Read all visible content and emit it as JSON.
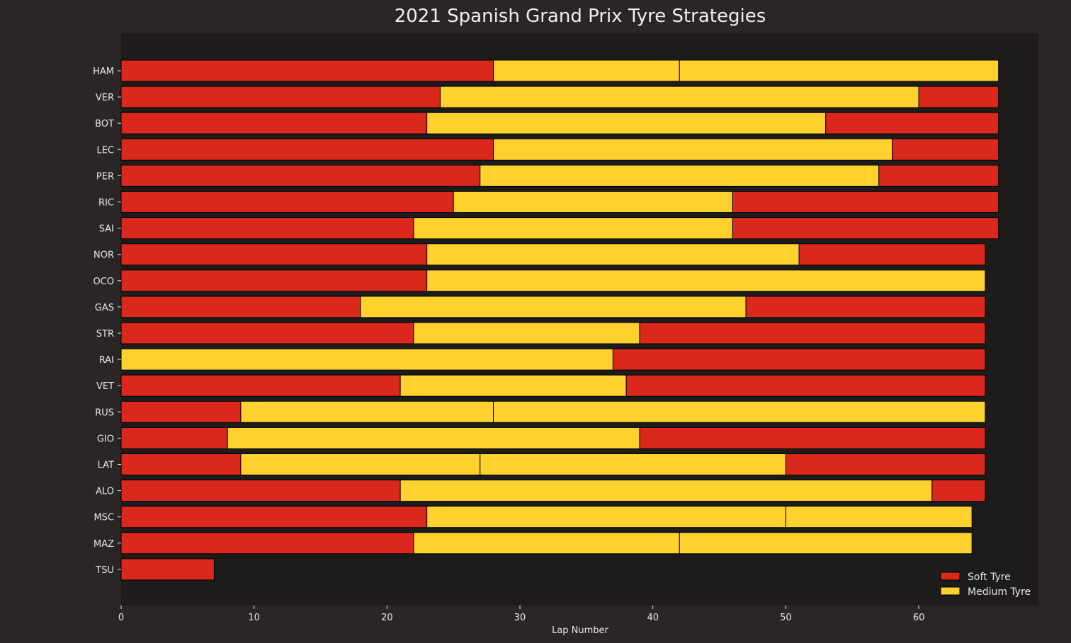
{
  "chart_data": {
    "type": "bar",
    "orientation": "horizontal",
    "stacked": true,
    "title": "2021 Spanish Grand Prix Tyre Strategies",
    "xlabel": "Lap Number",
    "ylabel": "",
    "xlim": [
      0,
      69
    ],
    "xticks": [
      0,
      10,
      20,
      30,
      40,
      50,
      60
    ],
    "grid": false,
    "legend": {
      "position": "bottom-right",
      "entries": [
        {
          "name": "Soft Tyre",
          "compound": "SOFT"
        },
        {
          "name": "Medium Tyre",
          "compound": "MEDIUM"
        }
      ]
    },
    "colors": {
      "SOFT": "#da291c",
      "MEDIUM": "#ffd12e",
      "background": "#292625",
      "plot_background": "#1e1c1b",
      "edge": "#000000"
    },
    "drivers": [
      {
        "driver": "HAM",
        "stints": [
          {
            "compound": "SOFT",
            "start": 0,
            "laps": 28
          },
          {
            "compound": "MEDIUM",
            "start": 28,
            "laps": 14
          },
          {
            "compound": "MEDIUM",
            "start": 42,
            "laps": 24
          }
        ]
      },
      {
        "driver": "VER",
        "stints": [
          {
            "compound": "SOFT",
            "start": 0,
            "laps": 24
          },
          {
            "compound": "MEDIUM",
            "start": 24,
            "laps": 36
          },
          {
            "compound": "SOFT",
            "start": 60,
            "laps": 6
          }
        ]
      },
      {
        "driver": "BOT",
        "stints": [
          {
            "compound": "SOFT",
            "start": 0,
            "laps": 23
          },
          {
            "compound": "MEDIUM",
            "start": 23,
            "laps": 30
          },
          {
            "compound": "SOFT",
            "start": 53,
            "laps": 13
          }
        ]
      },
      {
        "driver": "LEC",
        "stints": [
          {
            "compound": "SOFT",
            "start": 0,
            "laps": 28
          },
          {
            "compound": "MEDIUM",
            "start": 28,
            "laps": 30
          },
          {
            "compound": "SOFT",
            "start": 58,
            "laps": 8
          }
        ]
      },
      {
        "driver": "PER",
        "stints": [
          {
            "compound": "SOFT",
            "start": 0,
            "laps": 27
          },
          {
            "compound": "MEDIUM",
            "start": 27,
            "laps": 30
          },
          {
            "compound": "SOFT",
            "start": 57,
            "laps": 9
          }
        ]
      },
      {
        "driver": "RIC",
        "stints": [
          {
            "compound": "SOFT",
            "start": 0,
            "laps": 25
          },
          {
            "compound": "MEDIUM",
            "start": 25,
            "laps": 21
          },
          {
            "compound": "SOFT",
            "start": 46,
            "laps": 20
          }
        ]
      },
      {
        "driver": "SAI",
        "stints": [
          {
            "compound": "SOFT",
            "start": 0,
            "laps": 22
          },
          {
            "compound": "MEDIUM",
            "start": 22,
            "laps": 24
          },
          {
            "compound": "SOFT",
            "start": 46,
            "laps": 20
          }
        ]
      },
      {
        "driver": "NOR",
        "stints": [
          {
            "compound": "SOFT",
            "start": 0,
            "laps": 23
          },
          {
            "compound": "MEDIUM",
            "start": 23,
            "laps": 28
          },
          {
            "compound": "SOFT",
            "start": 51,
            "laps": 14
          }
        ]
      },
      {
        "driver": "OCO",
        "stints": [
          {
            "compound": "SOFT",
            "start": 0,
            "laps": 23
          },
          {
            "compound": "MEDIUM",
            "start": 23,
            "laps": 42
          }
        ]
      },
      {
        "driver": "GAS",
        "stints": [
          {
            "compound": "SOFT",
            "start": 0,
            "laps": 18
          },
          {
            "compound": "MEDIUM",
            "start": 18,
            "laps": 29
          },
          {
            "compound": "SOFT",
            "start": 47,
            "laps": 18
          }
        ]
      },
      {
        "driver": "STR",
        "stints": [
          {
            "compound": "SOFT",
            "start": 0,
            "laps": 22
          },
          {
            "compound": "MEDIUM",
            "start": 22,
            "laps": 17
          },
          {
            "compound": "SOFT",
            "start": 39,
            "laps": 26
          }
        ]
      },
      {
        "driver": "RAI",
        "stints": [
          {
            "compound": "MEDIUM",
            "start": 0,
            "laps": 37
          },
          {
            "compound": "SOFT",
            "start": 37,
            "laps": 28
          }
        ]
      },
      {
        "driver": "VET",
        "stints": [
          {
            "compound": "SOFT",
            "start": 0,
            "laps": 21
          },
          {
            "compound": "MEDIUM",
            "start": 21,
            "laps": 17
          },
          {
            "compound": "SOFT",
            "start": 38,
            "laps": 27
          }
        ]
      },
      {
        "driver": "RUS",
        "stints": [
          {
            "compound": "SOFT",
            "start": 0,
            "laps": 9
          },
          {
            "compound": "MEDIUM",
            "start": 9,
            "laps": 19
          },
          {
            "compound": "MEDIUM",
            "start": 28,
            "laps": 37
          }
        ]
      },
      {
        "driver": "GIO",
        "stints": [
          {
            "compound": "SOFT",
            "start": 0,
            "laps": 8
          },
          {
            "compound": "MEDIUM",
            "start": 8,
            "laps": 31
          },
          {
            "compound": "SOFT",
            "start": 39,
            "laps": 26
          }
        ]
      },
      {
        "driver": "LAT",
        "stints": [
          {
            "compound": "SOFT",
            "start": 0,
            "laps": 9
          },
          {
            "compound": "MEDIUM",
            "start": 9,
            "laps": 18
          },
          {
            "compound": "MEDIUM",
            "start": 27,
            "laps": 23
          },
          {
            "compound": "SOFT",
            "start": 50,
            "laps": 15
          }
        ]
      },
      {
        "driver": "ALO",
        "stints": [
          {
            "compound": "SOFT",
            "start": 0,
            "laps": 21
          },
          {
            "compound": "MEDIUM",
            "start": 21,
            "laps": 40
          },
          {
            "compound": "SOFT",
            "start": 61,
            "laps": 4
          }
        ]
      },
      {
        "driver": "MSC",
        "stints": [
          {
            "compound": "SOFT",
            "start": 0,
            "laps": 23
          },
          {
            "compound": "MEDIUM",
            "start": 23,
            "laps": 27
          },
          {
            "compound": "MEDIUM",
            "start": 50,
            "laps": 14
          }
        ]
      },
      {
        "driver": "MAZ",
        "stints": [
          {
            "compound": "SOFT",
            "start": 0,
            "laps": 22
          },
          {
            "compound": "MEDIUM",
            "start": 22,
            "laps": 20
          },
          {
            "compound": "MEDIUM",
            "start": 42,
            "laps": 22
          }
        ]
      },
      {
        "driver": "TSU",
        "stints": [
          {
            "compound": "SOFT",
            "start": 0,
            "laps": 7
          }
        ]
      }
    ]
  }
}
